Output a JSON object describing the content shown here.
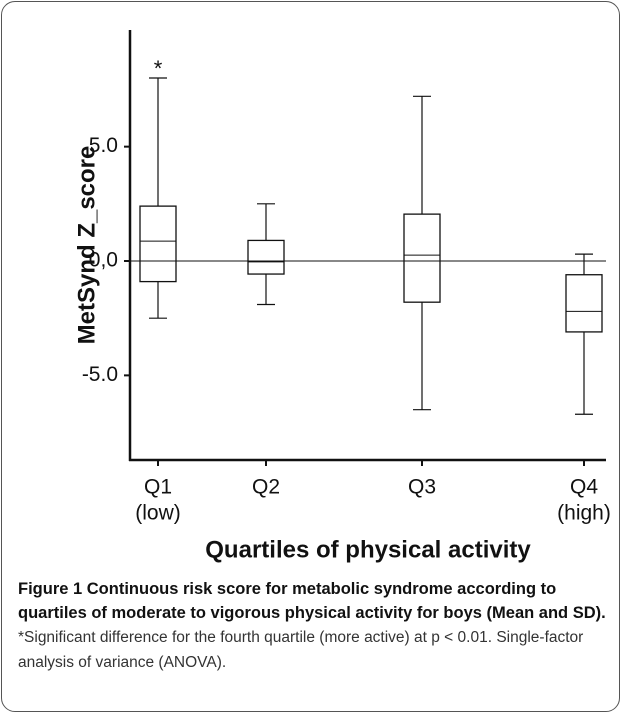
{
  "chart_data": {
    "type": "box",
    "y_label": "MetSynd Z_score",
    "x_label": "Quartiles of physical activity",
    "annotation": "*",
    "categories": [
      [
        "Q1",
        "(low)"
      ],
      [
        "Q2"
      ],
      [
        "Q3"
      ],
      [
        "Q4",
        "(high)"
      ]
    ],
    "whisker_high": [
      8.0,
      2.5,
      7.2,
      0.3
    ],
    "box_high": [
      2.4,
      0.9,
      2.05,
      -0.6
    ],
    "median": [
      0.87,
      -0.04,
      0.26,
      -2.2
    ],
    "box_low": [
      -0.9,
      -0.57,
      -1.8,
      -3.1
    ],
    "whisker_low": [
      -2.5,
      -1.9,
      -6.5,
      -6.7
    ],
    "reference_line": 0,
    "ylim": [
      -8.7,
      10.1
    ],
    "yticks": [
      {
        "value": 5,
        "label": "5.0"
      },
      {
        "value": 0,
        "label": "0,0"
      },
      {
        "value": -5,
        "label": "-5.0"
      }
    ],
    "color": "#111111"
  },
  "caption": {
    "title": "Figure 1 Continuous risk score for metabolic syndrome according to quartiles of moderate to vigorous physical activity for boys (Mean and SD).",
    "text": "*Significant difference for the fourth quartile (more active) at p < 0.01. Single-factor analysis of variance (ANOVA)."
  }
}
